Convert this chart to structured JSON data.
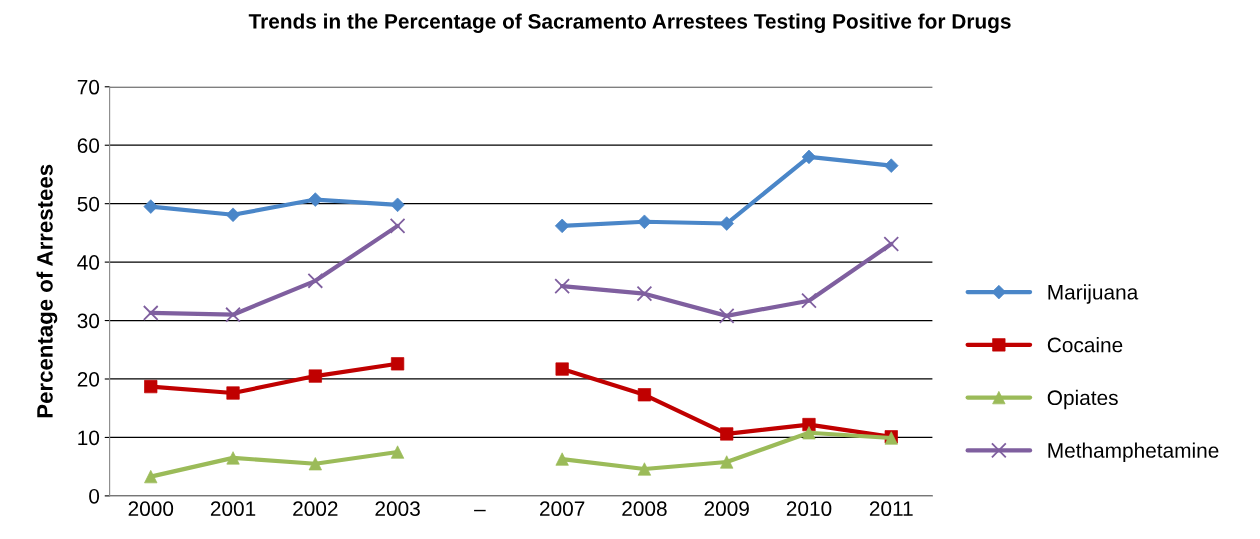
{
  "chart_data": {
    "type": "line",
    "title": "Trends in the Percentage of Sacramento Arrestees Testing Positive for Drugs",
    "ylabel": "Percentage of Arrestees",
    "categories": [
      "2000",
      "2001",
      "2002",
      "2003",
      "–",
      "2007",
      "2008",
      "2009",
      "2010",
      "2011"
    ],
    "series": [
      {
        "name": "Marijuana",
        "color": "#4a86c8",
        "marker": "diamond",
        "values": [
          49.5,
          48.1,
          50.7,
          49.8,
          null,
          46.2,
          46.9,
          46.6,
          58.0,
          56.5
        ]
      },
      {
        "name": "Cocaine",
        "color": "#c00000",
        "marker": "square",
        "values": [
          18.7,
          17.6,
          20.5,
          22.6,
          null,
          21.7,
          17.3,
          10.6,
          12.2,
          10.1
        ]
      },
      {
        "name": "Opiates",
        "color": "#9bbb59",
        "marker": "triangle",
        "values": [
          3.3,
          6.5,
          5.5,
          7.5,
          null,
          6.3,
          4.6,
          5.8,
          10.8,
          9.9
        ]
      },
      {
        "name": "Methamphetamine",
        "color": "#7f5f9f",
        "marker": "cross",
        "values": [
          31.3,
          31.0,
          36.8,
          46.2,
          null,
          35.9,
          34.6,
          30.8,
          33.4,
          43.1
        ]
      }
    ],
    "ylim": [
      0,
      70
    ],
    "yticks": [
      0,
      10,
      20,
      30,
      40,
      50,
      60,
      70
    ],
    "grid": "y",
    "legend": "right",
    "line_style": "solid"
  }
}
